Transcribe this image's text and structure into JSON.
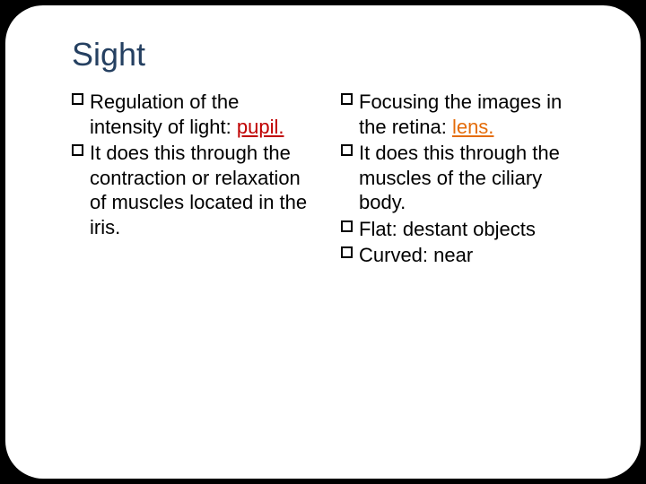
{
  "title": "Sight",
  "colors": {
    "title": "#254061",
    "text": "#000000",
    "accent_red": "#c00000",
    "accent_orange": "#e46c0a",
    "background": "#ffffff",
    "frame": "#000000"
  },
  "fonts": {
    "title_size": 36,
    "body_size": 22,
    "family": "Arial"
  },
  "left": {
    "b1_pre": "Regulation of the intensity of light: ",
    "b1_key": "pupil.",
    "b2": "It does this through the contraction or relaxation of muscles located in the iris."
  },
  "right": {
    "b1_pre": "Focusing the images in the retina: ",
    "b1_key": "lens.",
    "b2": "It does this through the muscles of the ciliary body.",
    "b3": "Flat: destant objects",
    "b4": "Curved: near"
  }
}
